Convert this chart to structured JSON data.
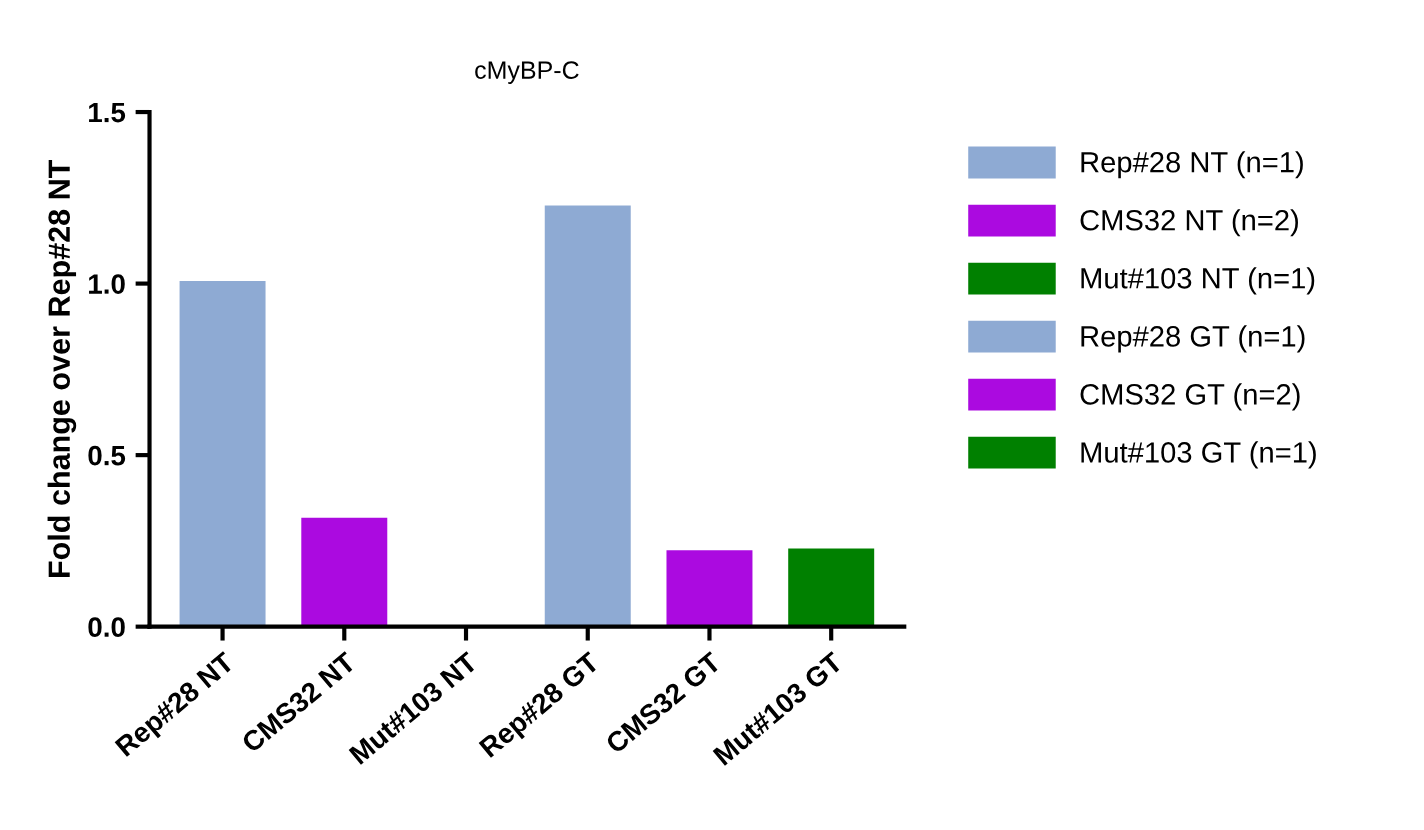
{
  "chart_data": {
    "type": "bar",
    "title": "cMyBP-C",
    "ylabel": "Fold change over Rep#28 NT",
    "categories": [
      "Rep#28 NT",
      "CMS32 NT",
      "Mut#103 NT",
      "Rep#28 GT",
      "CMS32 GT",
      "Mut#103 GT"
    ],
    "series": [
      {
        "name": "Rep#28 NT (n=1)",
        "color": "#8eaad3",
        "values": [
          1.01,
          null,
          null,
          null,
          null,
          null
        ]
      },
      {
        "name": "CMS32 NT (n=2)",
        "color": "#ab0ae0",
        "values": [
          null,
          0.32,
          null,
          null,
          null,
          null
        ]
      },
      {
        "name": "Mut#103 NT (n=1)",
        "color": "#008000",
        "values": [
          null,
          null,
          null,
          null,
          null,
          null
        ]
      },
      {
        "name": "Rep#28 GT (n=1)",
        "color": "#8eaad3",
        "values": [
          null,
          null,
          null,
          1.23,
          null,
          null
        ]
      },
      {
        "name": "CMS32 GT (n=2)",
        "color": "#ab0ae0",
        "values": [
          null,
          null,
          null,
          null,
          0.225,
          null
        ]
      },
      {
        "name": "Mut#103 GT (n=1)",
        "color": "#008000",
        "values": [
          null,
          null,
          null,
          null,
          null,
          0.23
        ]
      }
    ],
    "ylim": [
      0,
      1.5
    ],
    "yticks": [
      {
        "value": 0,
        "label": "0.0"
      },
      {
        "value": 0.5,
        "label": "0.5"
      },
      {
        "value": 1.0,
        "label": "1.0"
      },
      {
        "value": 1.5,
        "label": "1.5"
      }
    ],
    "grid": false,
    "legend": "right"
  }
}
